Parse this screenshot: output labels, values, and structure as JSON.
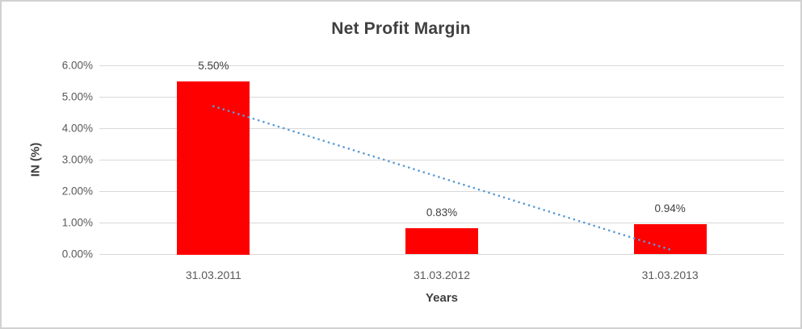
{
  "chart_data": {
    "type": "bar",
    "title": "Net Profit Margin",
    "categories": [
      "31.03.2011",
      "31.03.2012",
      "31.03.2013"
    ],
    "values": [
      5.5,
      0.83,
      0.94
    ],
    "data_labels": [
      "5.50%",
      "0.83%",
      "0.94%"
    ],
    "xlabel": "Years",
    "ylabel": "IN (%)",
    "ylim": [
      0,
      6
    ],
    "ytick_labels": [
      "0.00%",
      "1.00%",
      "2.00%",
      "3.00%",
      "4.00%",
      "5.00%",
      "6.00%"
    ],
    "grid": true,
    "legend": false,
    "bar_color": "#FF0000",
    "gridline_color": "#D9D9D9",
    "title_color": "#404040",
    "tick_label_color": "#595959",
    "trendline": {
      "type": "linear",
      "style": "dotted",
      "color": "#5B9BD5",
      "start_value": 4.7,
      "end_value": 0.14
    }
  }
}
